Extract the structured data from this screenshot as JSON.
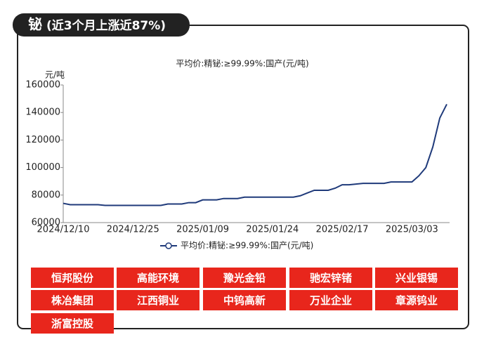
{
  "header": {
    "badge": "铋",
    "title": "(近3个月上涨近87%)"
  },
  "chart_data": {
    "type": "line",
    "title": "平均价:精铋:≥99.99%:国产(元/吨)",
    "y_label": "元/吨",
    "categories": [
      "2024/12/10",
      null,
      null,
      null,
      null,
      null,
      null,
      null,
      null,
      null,
      "2024/12/25",
      null,
      null,
      null,
      null,
      null,
      null,
      null,
      null,
      null,
      "2025/01/09",
      null,
      null,
      null,
      null,
      null,
      null,
      null,
      null,
      null,
      "2025/01/24",
      null,
      null,
      null,
      null,
      null,
      null,
      null,
      null,
      null,
      "2025/02/17",
      null,
      null,
      null,
      null,
      null,
      null,
      null,
      null,
      null,
      "2025/03/03",
      null,
      null,
      null,
      null,
      null
    ],
    "series": [
      {
        "name": "平均价:精铋:≥99.99%:国产(元/吨)",
        "color": "#1f3a7a",
        "values": [
          74000,
          73000,
          73000,
          73000,
          73000,
          73000,
          72500,
          72500,
          72500,
          72500,
          72500,
          72500,
          72500,
          72500,
          72500,
          73500,
          73500,
          73500,
          74500,
          74500,
          76500,
          76500,
          76500,
          77500,
          77500,
          77500,
          78500,
          78500,
          78500,
          78500,
          78500,
          78500,
          78500,
          78500,
          79500,
          81500,
          83500,
          83500,
          83500,
          85000,
          87500,
          87500,
          88000,
          88500,
          88500,
          88500,
          88500,
          89500,
          89500,
          89500,
          89500,
          94000,
          100000,
          115000,
          136000,
          146000
        ]
      }
    ],
    "ylim": [
      60000,
      160000
    ],
    "yticks": [
      60000,
      80000,
      100000,
      120000,
      140000,
      160000
    ],
    "legend": "bottom"
  },
  "companies": [
    "恒邦股份",
    "高能环境",
    "豫光金铅",
    "驰宏锌锗",
    "兴业银锡",
    "株冶集团",
    "江西铜业",
    "中钨高新",
    "万业企业",
    "章源钨业",
    "浙富控股"
  ]
}
